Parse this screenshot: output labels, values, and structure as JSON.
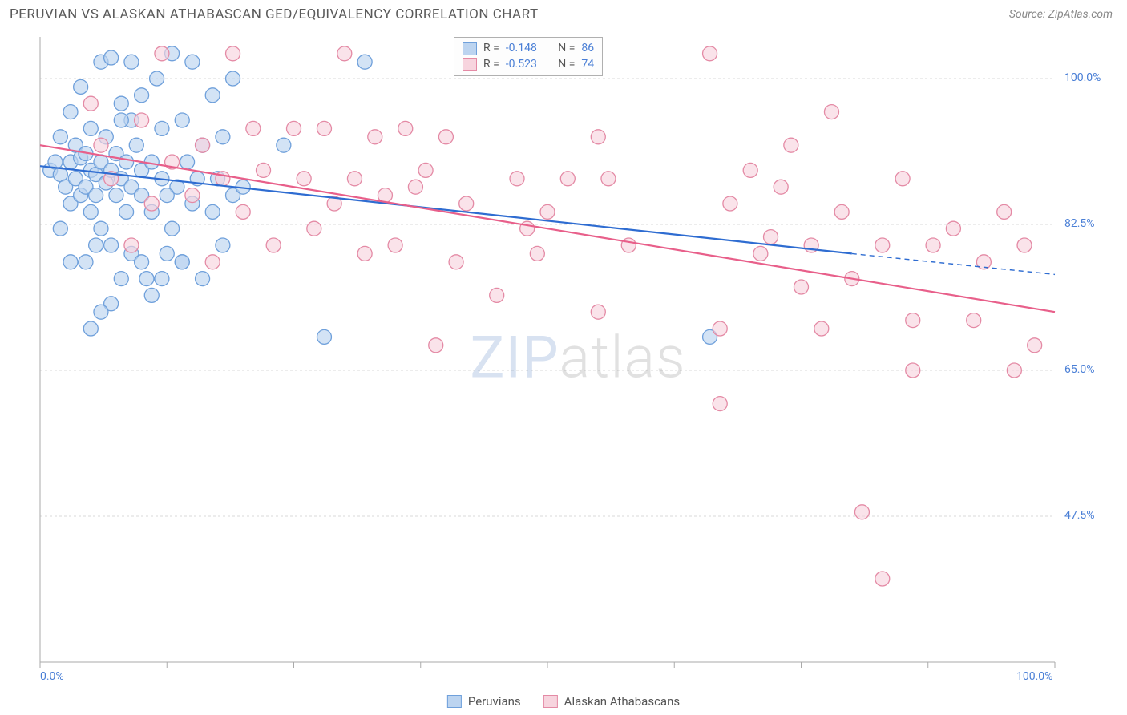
{
  "header": {
    "title": "PERUVIAN VS ALASKAN ATHABASCAN GED/EQUIVALENCY CORRELATION CHART",
    "source": "Source: ZipAtlas.com"
  },
  "watermark": {
    "part1": "ZIP",
    "part2": "atlas"
  },
  "chart": {
    "type": "scatter",
    "ylabel": "GED/Equivalency",
    "xlim": [
      0,
      100
    ],
    "ylim": [
      30,
      105
    ],
    "y_ticks": [
      47.5,
      65.0,
      82.5,
      100.0
    ],
    "y_tick_labels": [
      "47.5%",
      "65.0%",
      "82.5%",
      "100.0%"
    ],
    "x_ticks": [
      0,
      12.5,
      25,
      37.5,
      50,
      62.5,
      75,
      87.5,
      100
    ],
    "x_tick_labels_shown": {
      "0": "0.0%",
      "100": "100.0%"
    },
    "background_color": "#ffffff",
    "grid_color": "#d8d8d8",
    "axis_color": "#aaaaaa",
    "marker_radius": 9,
    "marker_stroke_width": 1.3,
    "line_width": 2.2,
    "series": [
      {
        "name": "Peruvians",
        "color_fill": "#bcd4f0",
        "color_stroke": "#6fa0db",
        "line_color": "#2e6cd1",
        "R": "-0.148",
        "N": "86",
        "trend": {
          "x1": 0,
          "y1": 89.5,
          "x2": 80,
          "y2": 79.0,
          "x2_dash": 100,
          "y2_dash": 76.5
        },
        "points": [
          [
            1,
            89
          ],
          [
            1.5,
            90
          ],
          [
            2,
            88.5
          ],
          [
            2,
            93
          ],
          [
            2.5,
            87
          ],
          [
            3,
            90
          ],
          [
            3,
            85
          ],
          [
            3.5,
            92
          ],
          [
            3.5,
            88
          ],
          [
            4,
            86
          ],
          [
            4,
            90.5
          ],
          [
            4.5,
            91
          ],
          [
            4.5,
            87
          ],
          [
            5,
            89
          ],
          [
            5,
            84
          ],
          [
            5,
            94
          ],
          [
            5.5,
            86
          ],
          [
            5.5,
            88.5
          ],
          [
            6,
            102
          ],
          [
            6,
            90
          ],
          [
            6,
            82
          ],
          [
            6.5,
            87.5
          ],
          [
            6.5,
            93
          ],
          [
            7,
            89
          ],
          [
            7,
            102.5
          ],
          [
            7,
            80
          ],
          [
            7.5,
            86
          ],
          [
            7.5,
            91
          ],
          [
            8,
            76
          ],
          [
            8,
            88
          ],
          [
            8,
            97
          ],
          [
            8.5,
            84
          ],
          [
            8.5,
            90
          ],
          [
            9,
            102
          ],
          [
            9,
            87
          ],
          [
            9,
            79
          ],
          [
            9.5,
            92
          ],
          [
            10,
            86
          ],
          [
            10,
            98
          ],
          [
            10,
            89
          ],
          [
            10.5,
            76
          ],
          [
            11,
            90
          ],
          [
            11,
            84
          ],
          [
            11.5,
            100
          ],
          [
            12,
            88
          ],
          [
            12,
            94
          ],
          [
            12.5,
            79
          ],
          [
            13,
            82
          ],
          [
            13,
            103
          ],
          [
            13.5,
            87
          ],
          [
            14,
            78
          ],
          [
            14,
            95
          ],
          [
            14.5,
            90
          ],
          [
            15,
            85
          ],
          [
            15,
            102
          ],
          [
            15.5,
            88
          ],
          [
            16,
            76
          ],
          [
            16,
            92
          ],
          [
            17,
            84
          ],
          [
            17,
            98
          ],
          [
            17.5,
            88
          ],
          [
            18,
            80
          ],
          [
            18,
            93
          ],
          [
            19,
            86
          ],
          [
            19,
            100
          ],
          [
            5,
            70
          ],
          [
            7,
            73
          ],
          [
            10,
            78
          ],
          [
            3,
            96
          ],
          [
            4,
            99
          ],
          [
            6,
            72
          ],
          [
            5.5,
            80
          ],
          [
            9,
            95
          ],
          [
            2,
            82
          ],
          [
            3,
            78
          ],
          [
            11,
            74
          ],
          [
            12,
            76
          ],
          [
            8,
            95
          ],
          [
            12.5,
            86
          ],
          [
            4.5,
            78
          ],
          [
            32,
            102
          ],
          [
            28,
            69
          ],
          [
            24,
            92
          ],
          [
            20,
            87
          ],
          [
            66,
            69
          ],
          [
            14,
            78
          ]
        ]
      },
      {
        "name": "Alaskan Athabascans",
        "color_fill": "#f7d4de",
        "color_stroke": "#e48aa5",
        "line_color": "#e85f8a",
        "R": "-0.523",
        "N": "74",
        "trend": {
          "x1": 0,
          "y1": 92.0,
          "x2": 100,
          "y2": 72.0
        },
        "points": [
          [
            5,
            97
          ],
          [
            6,
            92
          ],
          [
            7,
            88
          ],
          [
            9,
            80
          ],
          [
            10,
            95
          ],
          [
            11,
            85
          ],
          [
            12,
            103
          ],
          [
            13,
            90
          ],
          [
            15,
            86
          ],
          [
            16,
            92
          ],
          [
            17,
            78
          ],
          [
            18,
            88
          ],
          [
            19,
            103
          ],
          [
            20,
            84
          ],
          [
            21,
            94
          ],
          [
            22,
            89
          ],
          [
            23,
            80
          ],
          [
            25,
            94
          ],
          [
            26,
            88
          ],
          [
            27,
            82
          ],
          [
            28,
            94
          ],
          [
            29,
            85
          ],
          [
            30,
            103
          ],
          [
            31,
            88
          ],
          [
            32,
            79
          ],
          [
            33,
            93
          ],
          [
            34,
            86
          ],
          [
            35,
            80
          ],
          [
            36,
            94
          ],
          [
            37,
            87
          ],
          [
            38,
            89
          ],
          [
            39,
            68
          ],
          [
            40,
            93
          ],
          [
            42,
            85
          ],
          [
            41,
            78
          ],
          [
            45,
            74
          ],
          [
            47,
            88
          ],
          [
            48,
            82
          ],
          [
            49,
            79
          ],
          [
            50,
            84
          ],
          [
            52,
            88
          ],
          [
            55,
            93
          ],
          [
            55,
            72
          ],
          [
            56,
            88
          ],
          [
            58,
            80
          ],
          [
            66,
            103
          ],
          [
            67,
            70
          ],
          [
            67,
            61
          ],
          [
            68,
            85
          ],
          [
            70,
            89
          ],
          [
            71,
            79
          ],
          [
            72,
            81
          ],
          [
            73,
            87
          ],
          [
            74,
            92
          ],
          [
            75,
            75
          ],
          [
            76,
            80
          ],
          [
            77,
            70
          ],
          [
            78,
            96
          ],
          [
            79,
            84
          ],
          [
            80,
            76
          ],
          [
            81,
            48
          ],
          [
            83,
            80
          ],
          [
            83,
            40
          ],
          [
            85,
            88
          ],
          [
            86,
            71
          ],
          [
            86,
            65
          ],
          [
            88,
            80
          ],
          [
            90,
            82
          ],
          [
            92,
            71
          ],
          [
            93,
            78
          ],
          [
            95,
            84
          ],
          [
            96,
            65
          ],
          [
            97,
            80
          ],
          [
            98,
            68
          ]
        ]
      }
    ],
    "bottom_legend": [
      {
        "label": "Peruvians",
        "fill": "#bcd4f0",
        "stroke": "#6fa0db"
      },
      {
        "label": "Alaskan Athabascans",
        "fill": "#f7d4de",
        "stroke": "#e48aa5"
      }
    ],
    "corr_legend": {
      "labels": {
        "R": "R  =",
        "N": "N  ="
      }
    }
  }
}
